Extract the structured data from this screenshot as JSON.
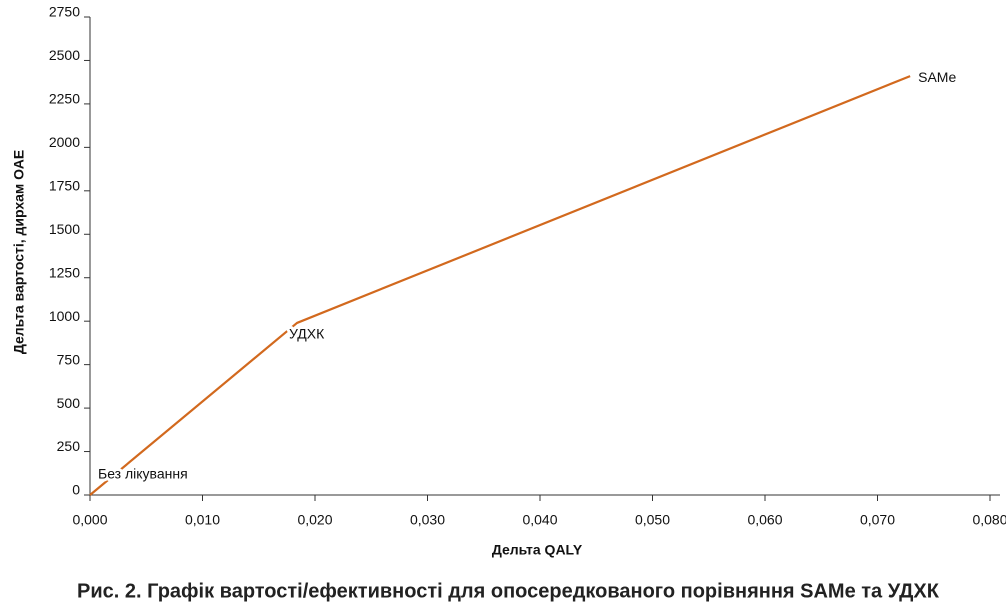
{
  "chart_data": {
    "type": "line",
    "title": "Рис. 2. Графік вартості/ефективності для опосередкованого порівняння SAMe та УДХК",
    "xlabel": "Дельта QALY",
    "ylabel": "Дельта вартості, дирхам ОАЕ",
    "x": [
      0,
      0.0184,
      0.0729
    ],
    "values": [
      0,
      990,
      2410
    ],
    "point_labels": [
      "Без лікування",
      "УДХК",
      "SAMe"
    ],
    "color": "#d2691e",
    "xlim": [
      0,
      0.08
    ],
    "xticks": [
      {
        "value": 0,
        "label": "0,000"
      },
      {
        "value": 0.01,
        "label": "0,010"
      },
      {
        "value": 0.02,
        "label": "0,020"
      },
      {
        "value": 0.03,
        "label": "0,030"
      },
      {
        "value": 0.04,
        "label": "0,040"
      },
      {
        "value": 0.05,
        "label": "0,050"
      },
      {
        "value": 0.06,
        "label": "0,060"
      },
      {
        "value": 0.07,
        "label": "0,070"
      },
      {
        "value": 0.08,
        "label": "0,080"
      }
    ],
    "ylim": [
      0,
      2750
    ],
    "yticks": [
      0,
      250,
      500,
      750,
      1000,
      1250,
      1500,
      1750,
      2000,
      2250,
      2500,
      2750
    ],
    "grid": false
  }
}
